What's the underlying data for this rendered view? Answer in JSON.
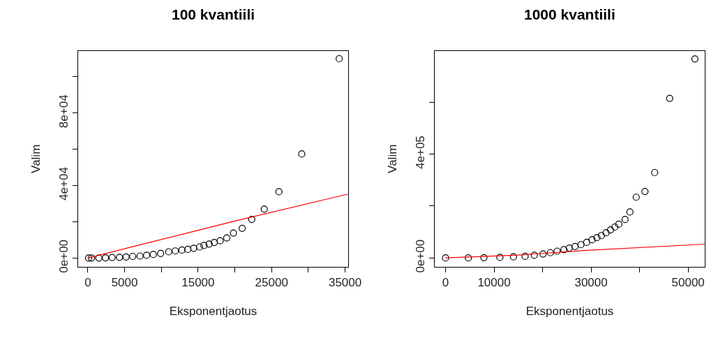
{
  "chart_data": [
    {
      "type": "scatter",
      "title": "100 kvantiili",
      "xlabel": "Eksponentjaotus",
      "ylabel": "Valim",
      "grid": false,
      "xlim": [
        -1300,
        35400
      ],
      "ylim": [
        -4800,
        114300
      ],
      "xticks": [
        0,
        5000,
        {
          "value": 10000,
          "label": null
        },
        15000,
        {
          "value": 20000,
          "label": null
        },
        25000,
        {
          "value": 30000,
          "label": null
        },
        35000
      ],
      "yticks": [
        {
          "value": 0,
          "label": "0e+00"
        },
        {
          "value": 20000,
          "label": null
        },
        {
          "value": 40000,
          "label": "4e+04"
        },
        {
          "value": 60000,
          "label": null
        },
        {
          "value": 80000,
          "label": "8e+04"
        },
        {
          "value": 100000,
          "label": null
        }
      ],
      "series": [
        {
          "color": "#000000",
          "marker": "circle",
          "x": [
            100,
            500,
            1500,
            2400,
            3300,
            4300,
            5200,
            6100,
            7100,
            8000,
            8900,
            9900,
            11000,
            11900,
            12800,
            13600,
            14400,
            15200,
            15800,
            16500,
            17200,
            18000,
            18900,
            19800,
            21000,
            22300,
            24000,
            26000,
            29100,
            34200
          ],
          "values": [
            0,
            0,
            0,
            100,
            300,
            400,
            600,
            900,
            1100,
            1500,
            2000,
            2500,
            3400,
            3900,
            4400,
            4800,
            5400,
            6100,
            6900,
            7700,
            8600,
            9500,
            11100,
            13800,
            16400,
            21300,
            27000,
            36600,
            57400,
            110000
          ]
        },
        {
          "type": "line",
          "color": "#ff0000",
          "marker": "none",
          "x": [
            0,
            7400,
            15200,
            19800,
            35400
          ],
          "values": [
            0,
            7600,
            15500,
            20200,
            35300
          ]
        }
      ]
    },
    {
      "type": "scatter",
      "title": "1000 kvantiili",
      "xlabel": "Eksponentjaotus",
      "ylabel": "Valim",
      "grid": false,
      "xlim": [
        -2200,
        53400
      ],
      "ylim": [
        -34000,
        798000
      ],
      "xticks": [
        0,
        10000,
        {
          "value": 20000,
          "label": null
        },
        30000,
        {
          "value": 40000,
          "label": null
        },
        50000
      ],
      "yticks": [
        {
          "value": 0,
          "label": "0e+00"
        },
        {
          "value": 200000,
          "label": null
        },
        {
          "value": 400000,
          "label": "4e+05"
        },
        {
          "value": 600000,
          "label": null
        }
      ],
      "series": [
        {
          "color": "#000000",
          "marker": "circle",
          "x": [
            0,
            4700,
            7900,
            11200,
            14000,
            16400,
            18300,
            20100,
            21600,
            23000,
            24400,
            25500,
            26700,
            27900,
            29100,
            30200,
            31200,
            32100,
            33100,
            34000,
            34900,
            35700,
            37000,
            38000,
            39300,
            41100,
            43100,
            46200,
            51400
          ],
          "values": [
            0,
            0,
            1000,
            2000,
            4000,
            6000,
            10000,
            15000,
            20000,
            26000,
            32000,
            38000,
            44000,
            51000,
            60000,
            70000,
            78000,
            86000,
            97000,
            108000,
            119000,
            130000,
            148000,
            177000,
            234000,
            256000,
            329000,
            615000,
            767000
          ]
        },
        {
          "type": "line",
          "color": "#ff0000",
          "marker": "none",
          "x": [
            0,
            15000,
            29100,
            53400
          ],
          "values": [
            0,
            11000,
            29000,
            53000
          ]
        }
      ]
    }
  ]
}
